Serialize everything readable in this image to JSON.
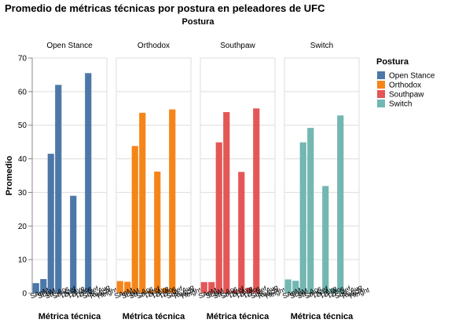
{
  "chart_data": {
    "type": "bar",
    "title": "Promedio de métricas técnicas por postura en peleadores de UFC",
    "column_title": "Postura",
    "xlabel": "Métrica técnica",
    "ylabel": "Promedio",
    "ylim": [
      0,
      70
    ],
    "yticks": [
      0,
      10,
      20,
      30,
      40,
      50,
      60,
      70
    ],
    "categories": [
      "SApM",
      "SLpM",
      "Str_Acc",
      "Str_Def",
      "TD_Avg",
      "TD_Acc",
      "TD_Def",
      "Sub_Avg",
      "Reach",
      "Height"
    ],
    "x_tick_labels_note": "x tick labels are rotated and overlap in the original",
    "legend": {
      "title": "Postura",
      "position": "top-right",
      "items": [
        {
          "label": "Open Stance",
          "color": "#4c78a8"
        },
        {
          "label": "Orthodox",
          "color": "#f58518"
        },
        {
          "label": "Southpaw",
          "color": "#e45756"
        },
        {
          "label": "Switch",
          "color": "#72b7b2"
        }
      ]
    },
    "facets": [
      {
        "name": "Open Stance",
        "color": "#4c78a8",
        "values": [
          3.0,
          4.2,
          41.5,
          62.0,
          0.4,
          29.0,
          0.3,
          65.5,
          0,
          0
        ]
      },
      {
        "name": "Orthodox",
        "color": "#f58518",
        "values": [
          3.6,
          3.4,
          43.8,
          53.7,
          0.8,
          36.2,
          1.5,
          54.7,
          0,
          0
        ]
      },
      {
        "name": "Southpaw",
        "color": "#e45756",
        "values": [
          3.3,
          3.3,
          44.9,
          53.9,
          0.8,
          36.1,
          1.6,
          55.0,
          0,
          0
        ]
      },
      {
        "name": "Switch",
        "color": "#72b7b2",
        "values": [
          4.1,
          3.7,
          44.9,
          49.2,
          0.5,
          31.9,
          1.4,
          52.9,
          0,
          0
        ]
      }
    ],
    "grid": true
  }
}
